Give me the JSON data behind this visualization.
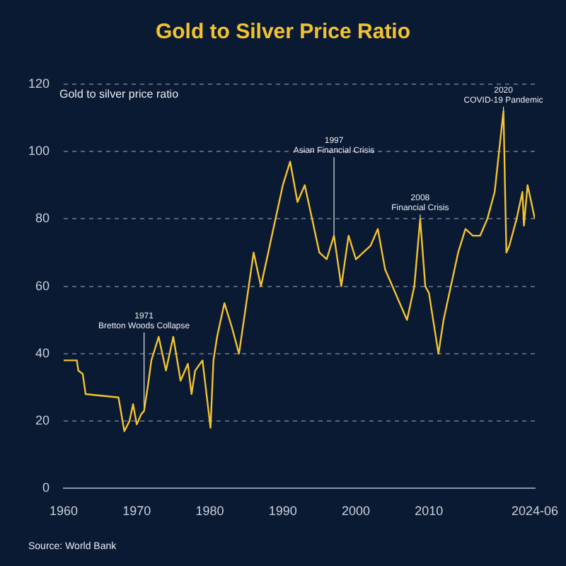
{
  "chart_data": {
    "type": "line",
    "title": "Gold to Silver Price Ratio",
    "ylabel": "Gold to silver price ratio",
    "x": [
      1960,
      1961.8,
      1962,
      1962.6,
      1963,
      1967.5,
      1968.3,
      1969,
      1969.5,
      1970,
      1970.6,
      1971,
      1971.5,
      1972,
      1973,
      1974,
      1975,
      1976,
      1977,
      1977.5,
      1978,
      1979,
      1980.1,
      1980.5,
      1981,
      1982,
      1983,
      1984,
      1985,
      1986,
      1987,
      1988,
      1989,
      1990,
      1991,
      1992,
      1993,
      1994,
      1995,
      1996,
      1997,
      1998,
      1999,
      2000,
      2001,
      2002,
      2003,
      2004,
      2005,
      2006,
      2007,
      2008,
      2008.8,
      2009.5,
      2010,
      2011.3,
      2012,
      2013,
      2014,
      2015,
      2016,
      2017,
      2018,
      2019,
      2020.2,
      2020.6,
      2021,
      2022,
      2022.8,
      2023,
      2023.5,
      2024,
      2024.5
    ],
    "series": [
      {
        "color": "#f2c230",
        "values": [
          38,
          38,
          35,
          34,
          28,
          27,
          17,
          20,
          25,
          19,
          22,
          23,
          30,
          38,
          45,
          35,
          45,
          32,
          37,
          28,
          35,
          38,
          18,
          38,
          45,
          55,
          48,
          40,
          55,
          70,
          60,
          70,
          80,
          90,
          97,
          85,
          90,
          80,
          70,
          68,
          75,
          60,
          75,
          68,
          70,
          72,
          77,
          65,
          60,
          55,
          50,
          60,
          80,
          60,
          58,
          40,
          50,
          60,
          70,
          77,
          75,
          75,
          80,
          88,
          112,
          70,
          72,
          80,
          88,
          78,
          90,
          85,
          80
        ]
      }
    ],
    "xlim": [
      1960,
      2024.5
    ],
    "xticks": [
      1960,
      1970,
      1980,
      1990,
      2000,
      2010,
      {
        "value": 2024.5,
        "label": "2024-06"
      }
    ],
    "ylim": [
      0,
      120
    ],
    "yticks": [
      0,
      20,
      40,
      60,
      80,
      100,
      120
    ],
    "grid": "y",
    "legend": false,
    "marker": "none",
    "line_style": "solid",
    "annotations": [
      {
        "text": "1971 Bretton Woods Collapse",
        "x": 1971,
        "y": 23
      },
      {
        "text": "1997 Asian Financial Crisis",
        "x": 1997,
        "y": 75
      },
      {
        "text": "2008 Financial Crisis",
        "x": 2008.8,
        "y": 80
      },
      {
        "text": "2020 COVID-19 Pandemic",
        "x": 2020.2,
        "y": 112
      },
      "Source: World Bank"
    ]
  }
}
